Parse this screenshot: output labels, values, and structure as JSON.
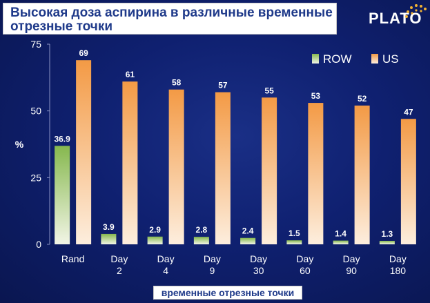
{
  "title_line1": "Высокая доза аспирина в различные временные",
  "title_line2": "отрезные точки",
  "logo_text": "PLATO",
  "chart_data": {
    "type": "bar",
    "title": "Высокая доза аспирина в различные временные отрезные точки",
    "ylabel": "%",
    "xlabel": "временные отрезные точки",
    "ylim": [
      0,
      75
    ],
    "yticks": [
      0,
      25,
      50,
      75
    ],
    "grid": false,
    "legend_position": "top-right",
    "categories": [
      [
        "Rand"
      ],
      [
        "Day",
        "2"
      ],
      [
        "Day",
        "4"
      ],
      [
        "Day",
        "9"
      ],
      [
        "Day",
        "30"
      ],
      [
        "Day",
        "60"
      ],
      [
        "Day",
        "90"
      ],
      [
        "Day",
        "180"
      ]
    ],
    "series": [
      {
        "name": "ROW",
        "color": "#8fbf5a",
        "values": [
          36.9,
          3.9,
          2.9,
          2.8,
          2.4,
          1.5,
          1.4,
          1.3
        ]
      },
      {
        "name": "US",
        "color": "#f5a04c",
        "values": [
          69,
          61,
          58,
          57,
          55,
          53,
          52,
          47
        ]
      }
    ]
  }
}
